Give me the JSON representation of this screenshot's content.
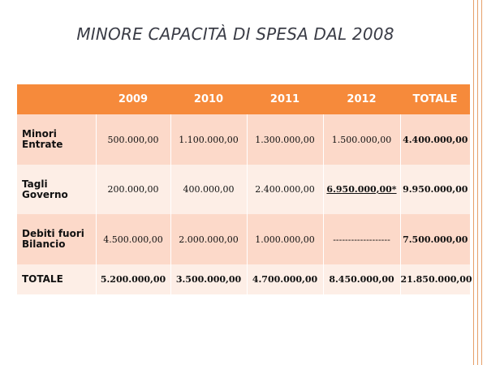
{
  "title": "MINORE CAPACITÀ DI SPESA DAL 2008",
  "table": {
    "columns": [
      "",
      "2009",
      "2010",
      "2011",
      "2012",
      "TOTALE"
    ],
    "rows": [
      {
        "label": "Minori Entrate",
        "values": [
          "500.000,00",
          "1.100.000,00",
          "1.300.000,00",
          "1.500.000,00"
        ],
        "total": "4.400.000,00"
      },
      {
        "label": "Tagli Governo",
        "values": [
          "200.000,00",
          "400.000,00",
          "2.400.000,00",
          "6.950.000,00*"
        ],
        "total": "9.950.000,00"
      },
      {
        "label": "Debiti fuori Bilancio",
        "values": [
          "4.500.000,00",
          "2.000.000,00",
          "1.000.000,00",
          "-------------------"
        ],
        "total": "7.500.000,00"
      }
    ],
    "totals": {
      "label": "TOTALE",
      "values": [
        "5.200.000,00",
        "3.500.000,00",
        "4.700.000,00",
        "8.450.000,00"
      ],
      "total": "21.850.000,00"
    }
  }
}
